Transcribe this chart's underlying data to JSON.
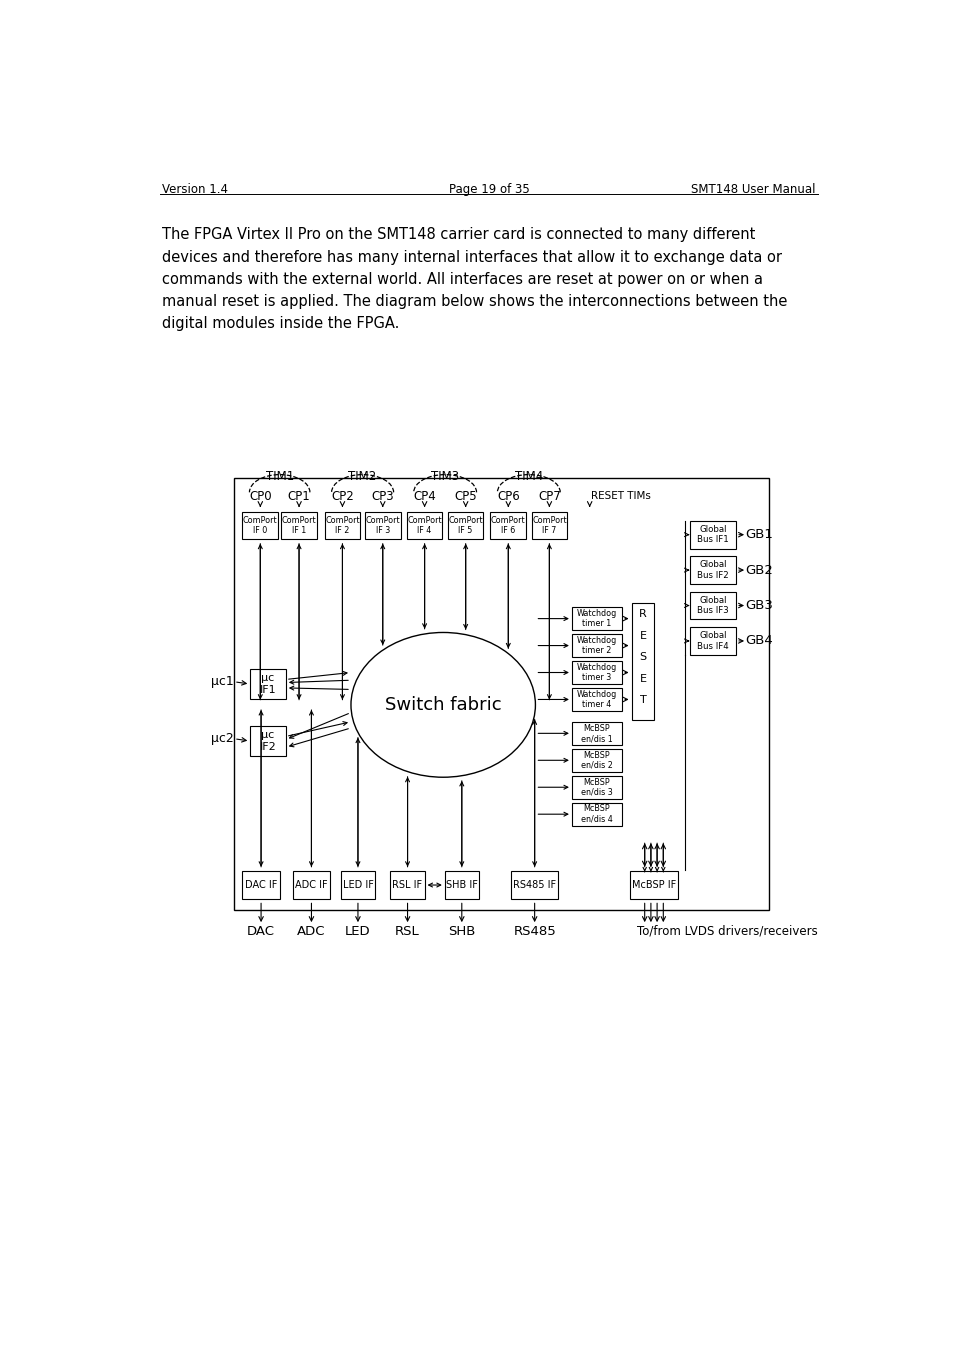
{
  "header_left": "Version 1.4",
  "header_center": "Page 19 of 35",
  "header_right": "SMT148 User Manual",
  "body_text": "The FPGA Virtex II Pro on the SMT148 carrier card is connected to many different\ndevices and therefore has many internal interfaces that allow it to exchange data or\ncommands with the external world. All interfaces are reset at power on or when a\nmanual reset is applied. The diagram below shows the interconnections between the\ndigital modules inside the FPGA.",
  "comport_labels": [
    "ComPort\nIF 0",
    "ComPort\nIF 1",
    "ComPort\nIF 2",
    "ComPort\nIF 3",
    "ComPort\nIF 4",
    "ComPort\nIF 5",
    "ComPort\nIF 6",
    "ComPort\nIF 7"
  ],
  "cp_names": [
    "CP0",
    "CP1",
    "CP2",
    "CP3",
    "CP4",
    "CP5",
    "CP6",
    "CP7"
  ],
  "tim_names": [
    "TIM1",
    "TIM2",
    "TIM3",
    "TIM4"
  ],
  "watchdog_labels": [
    "Watchdog\ntimer 1",
    "Watchdog\ntimer 2",
    "Watchdog\ntimer 3",
    "Watchdog\ntimer 4"
  ],
  "mcbsp_labels": [
    "McBSP\nen/dis 1",
    "McBSP\nen/dis 2",
    "McBSP\nen/dis 3",
    "McBSP\nen/dis 4"
  ],
  "gb_labels": [
    "Global\nBus IF1",
    "Global\nBus IF2",
    "Global\nBus IF3",
    "Global\nBus IF4"
  ],
  "gb_names": [
    "GB1",
    "GB2",
    "GB3",
    "GB4"
  ],
  "bot_labels": [
    "DAC IF",
    "ADC IF",
    "LED IF",
    "RSL IF",
    "SHB IF",
    "RS485 IF",
    "McBSP IF"
  ],
  "bot_names": [
    "DAC",
    "ADC",
    "LED",
    "RSL",
    "SHB",
    "RS485",
    "To/from LVDS drivers/receivers"
  ]
}
